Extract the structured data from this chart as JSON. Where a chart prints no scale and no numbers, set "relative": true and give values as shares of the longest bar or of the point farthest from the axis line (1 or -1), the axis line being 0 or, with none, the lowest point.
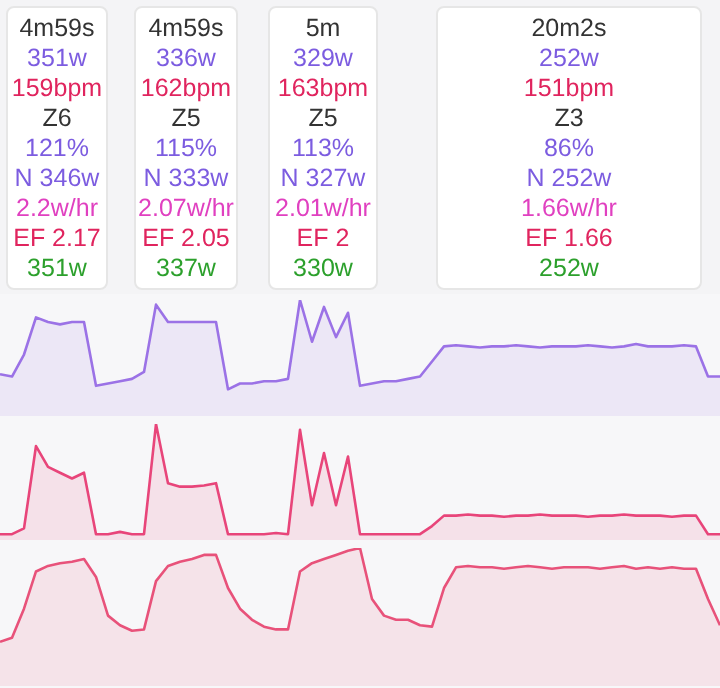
{
  "chart_data": [
    {
      "type": "other",
      "annotations": [
        "4m59s",
        "351w",
        "159bpm",
        "Z6",
        "121%",
        "N 346w",
        "2.2w/hr",
        "EF 2.17",
        "351w",
        "4m59s",
        "336w",
        "162bpm",
        "Z5",
        "115%",
        "N 333w",
        "2.07w/hr",
        "EF 2.05",
        "337w",
        "5m",
        "329w",
        "163bpm",
        "Z5",
        "113%",
        "N 327w",
        "2.01w/hr",
        "EF 2",
        "330w",
        "20m2s",
        "252w",
        "151bpm",
        "Z3",
        "86%",
        "N 252w",
        "1.66w/hr",
        "EF 1.66",
        "252w"
      ]
    },
    {
      "type": "area",
      "relative": true,
      "categories": [
        null,
        null,
        null,
        null,
        null,
        null,
        null,
        null,
        null,
        null,
        null,
        null,
        null,
        null,
        null,
        null,
        null,
        null,
        null,
        null,
        null,
        null,
        null,
        null,
        null,
        null,
        null,
        null,
        null,
        null,
        null,
        null,
        null,
        null,
        null,
        null,
        null,
        null,
        null,
        null,
        null,
        null,
        null,
        null,
        null,
        null,
        null,
        null,
        null,
        null,
        null,
        null,
        null,
        null,
        null,
        null,
        null,
        null,
        null,
        null,
        null
      ],
      "series": [
        {
          "color": "#9b72e6",
          "values": [
            0.36,
            0.34,
            0.53,
            0.85,
            0.81,
            0.79,
            0.81,
            0.81,
            0.26,
            0.28,
            0.3,
            0.32,
            0.38,
            0.96,
            0.81,
            0.81,
            0.81,
            0.81,
            0.81,
            0.23,
            0.28,
            0.28,
            0.3,
            0.3,
            0.32,
            1,
            0.64,
            0.94,
            0.68,
            0.89,
            0.26,
            0.28,
            0.3,
            0.3,
            0.32,
            0.34,
            0.47,
            0.6,
            0.61,
            0.6,
            0.59,
            0.6,
            0.6,
            0.61,
            0.6,
            0.59,
            0.6,
            0.6,
            0.6,
            0.61,
            0.6,
            0.59,
            0.6,
            0.62,
            0.6,
            0.6,
            0.6,
            0.61,
            0.6,
            0.34,
            0.34
          ]
        }
      ]
    },
    {
      "type": "area",
      "relative": true,
      "categories": [
        null,
        null,
        null,
        null,
        null,
        null,
        null,
        null,
        null,
        null,
        null,
        null,
        null,
        null,
        null,
        null,
        null,
        null,
        null,
        null,
        null,
        null,
        null,
        null,
        null,
        null,
        null,
        null,
        null,
        null,
        null,
        null,
        null,
        null,
        null,
        null,
        null,
        null,
        null,
        null,
        null,
        null,
        null,
        null,
        null,
        null,
        null,
        null,
        null,
        null,
        null,
        null,
        null,
        null,
        null,
        null,
        null,
        null,
        null,
        null,
        null
      ],
      "series": [
        {
          "color": "#e8457a",
          "values": [
            0.05,
            0.05,
            0.1,
            0.81,
            0.63,
            0.58,
            0.53,
            0.58,
            0.05,
            0.05,
            0.07,
            0.05,
            0.05,
            1,
            0.49,
            0.46,
            0.46,
            0.47,
            0.49,
            0.05,
            0.05,
            0.05,
            0.05,
            0.06,
            0.05,
            0.95,
            0.3,
            0.75,
            0.3,
            0.72,
            0.05,
            0.05,
            0.05,
            0.05,
            0.05,
            0.05,
            0.12,
            0.21,
            0.21,
            0.22,
            0.21,
            0.21,
            0.2,
            0.21,
            0.21,
            0.22,
            0.21,
            0.21,
            0.21,
            0.2,
            0.21,
            0.21,
            0.22,
            0.21,
            0.21,
            0.21,
            0.2,
            0.21,
            0.21,
            0.05,
            0.05
          ]
        }
      ]
    },
    {
      "type": "area",
      "relative": true,
      "categories": [
        null,
        null,
        null,
        null,
        null,
        null,
        null,
        null,
        null,
        null,
        null,
        null,
        null,
        null,
        null,
        null,
        null,
        null,
        null,
        null,
        null,
        null,
        null,
        null,
        null,
        null,
        null,
        null,
        null,
        null,
        null,
        null,
        null,
        null,
        null,
        null,
        null,
        null,
        null,
        null,
        null,
        null,
        null,
        null,
        null,
        null,
        null,
        null,
        null,
        null,
        null,
        null,
        null,
        null,
        null,
        null,
        null,
        null,
        null,
        null,
        null
      ],
      "series": [
        {
          "color": "#e8527a",
          "values": [
            0.32,
            0.35,
            0.56,
            0.83,
            0.87,
            0.89,
            0.9,
            0.92,
            0.79,
            0.51,
            0.44,
            0.4,
            0.41,
            0.76,
            0.87,
            0.9,
            0.92,
            0.95,
            0.95,
            0.71,
            0.56,
            0.48,
            0.43,
            0.41,
            0.41,
            0.83,
            0.89,
            0.92,
            0.95,
            0.98,
            1,
            0.63,
            0.51,
            0.48,
            0.48,
            0.44,
            0.43,
            0.71,
            0.86,
            0.87,
            0.86,
            0.86,
            0.85,
            0.86,
            0.87,
            0.86,
            0.85,
            0.86,
            0.86,
            0.86,
            0.85,
            0.86,
            0.87,
            0.85,
            0.86,
            0.85,
            0.86,
            0.85,
            0.85,
            0.63,
            0.44
          ]
        }
      ]
    }
  ]
}
